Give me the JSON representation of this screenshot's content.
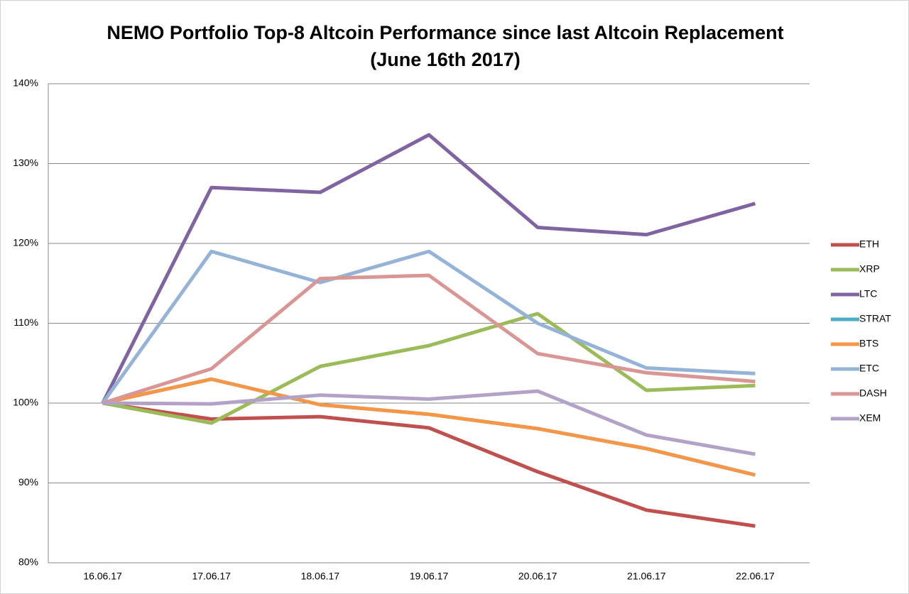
{
  "chart_data": {
    "type": "line",
    "title": "NEMO Portfolio Top-8 Altcoin Performance since last Altcoin Replacement",
    "subtitle": "(June 16th 2017)",
    "categories": [
      "16.06.17",
      "17.06.17",
      "18.06.17",
      "19.06.17",
      "20.06.17",
      "21.06.17",
      "22.06.17"
    ],
    "series": [
      {
        "name": "ETH",
        "color": "#c0504d",
        "values": [
          100,
          98.0,
          98.3,
          96.9,
          91.4,
          86.6,
          84.6
        ]
      },
      {
        "name": "XRP",
        "color": "#9bbb59",
        "values": [
          100,
          97.5,
          104.6,
          107.2,
          111.2,
          101.6,
          102.2
        ]
      },
      {
        "name": "LTC",
        "color": "#8064a2",
        "values": [
          100,
          127.0,
          126.4,
          133.6,
          122.0,
          121.1,
          125.0
        ]
      },
      {
        "name": "STRAT",
        "color": "#4bacc6",
        "values": [
          100,
          103.0,
          99.8,
          98.6,
          96.8,
          94.3,
          91.0
        ]
      },
      {
        "name": "BTS",
        "color": "#f79646",
        "values": [
          100,
          103.0,
          99.8,
          98.6,
          96.8,
          94.3,
          91.0
        ]
      },
      {
        "name": "ETC",
        "color": "#95b3d7",
        "values": [
          100,
          119.0,
          115.1,
          119.0,
          110.0,
          104.4,
          103.7
        ]
      },
      {
        "name": "DASH",
        "color": "#d99694",
        "values": [
          100,
          104.3,
          115.6,
          116.0,
          106.2,
          103.8,
          102.7
        ]
      },
      {
        "name": "XEM",
        "color": "#b3a2c7",
        "values": [
          100,
          99.9,
          101.0,
          100.5,
          101.5,
          96.0,
          93.6
        ]
      }
    ],
    "ylim": [
      80,
      140
    ],
    "yticks": [
      {
        "value": 80,
        "label": "80%"
      },
      {
        "value": 90,
        "label": "90%"
      },
      {
        "value": 100,
        "label": "100%"
      },
      {
        "value": 110,
        "label": "110%"
      },
      {
        "value": 120,
        "label": "120%"
      },
      {
        "value": 130,
        "label": "130%"
      },
      {
        "value": 140,
        "label": "140%"
      }
    ],
    "grid": true,
    "legend": "right"
  }
}
